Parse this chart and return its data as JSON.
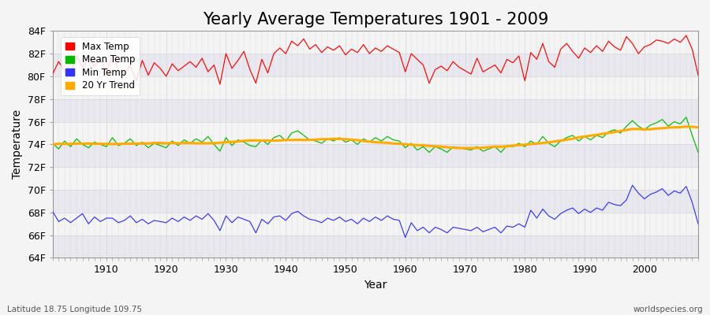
{
  "title": "Yearly Average Temperatures 1901 - 2009",
  "xlabel": "Year",
  "ylabel": "Temperature",
  "subtitle_left": "Latitude 18.75 Longitude 109.75",
  "subtitle_right": "worldspecies.org",
  "years": [
    1901,
    1902,
    1903,
    1904,
    1905,
    1906,
    1907,
    1908,
    1909,
    1910,
    1911,
    1912,
    1913,
    1914,
    1915,
    1916,
    1917,
    1918,
    1919,
    1920,
    1921,
    1922,
    1923,
    1924,
    1925,
    1926,
    1927,
    1928,
    1929,
    1930,
    1931,
    1932,
    1933,
    1934,
    1935,
    1936,
    1937,
    1938,
    1939,
    1940,
    1941,
    1942,
    1943,
    1944,
    1945,
    1946,
    1947,
    1948,
    1949,
    1950,
    1951,
    1952,
    1953,
    1954,
    1955,
    1956,
    1957,
    1958,
    1959,
    1960,
    1961,
    1962,
    1963,
    1964,
    1965,
    1966,
    1967,
    1968,
    1969,
    1970,
    1971,
    1972,
    1973,
    1974,
    1975,
    1976,
    1977,
    1978,
    1979,
    1980,
    1981,
    1982,
    1983,
    1984,
    1985,
    1986,
    1987,
    1988,
    1989,
    1990,
    1991,
    1992,
    1993,
    1994,
    1995,
    1996,
    1997,
    1998,
    1999,
    2000,
    2001,
    2002,
    2003,
    2004,
    2005,
    2006,
    2007,
    2008,
    2009
  ],
  "max_temp": [
    80.2,
    81.3,
    80.5,
    80.1,
    81.8,
    80.8,
    81.6,
    80.9,
    81.5,
    80.3,
    81.9,
    80.6,
    80.2,
    81.0,
    79.6,
    81.4,
    80.1,
    81.2,
    80.7,
    80.0,
    81.1,
    80.5,
    80.9,
    81.3,
    80.8,
    81.6,
    80.4,
    81.0,
    79.3,
    82.0,
    80.7,
    81.4,
    82.2,
    80.6,
    79.4,
    81.5,
    80.3,
    82.0,
    82.5,
    82.0,
    83.1,
    82.7,
    83.3,
    82.4,
    82.8,
    82.1,
    82.6,
    82.3,
    82.7,
    81.9,
    82.4,
    82.1,
    82.8,
    82.0,
    82.5,
    82.2,
    82.7,
    82.4,
    82.1,
    80.4,
    82.0,
    81.5,
    81.0,
    79.4,
    80.6,
    80.9,
    80.5,
    81.3,
    80.8,
    80.5,
    80.2,
    81.6,
    80.4,
    80.7,
    81.0,
    80.3,
    81.5,
    81.2,
    81.8,
    79.6,
    82.1,
    81.5,
    82.9,
    81.3,
    80.8,
    82.4,
    82.9,
    82.2,
    81.6,
    82.5,
    82.1,
    82.7,
    82.2,
    83.1,
    82.6,
    82.3,
    83.5,
    82.9,
    82.0,
    82.6,
    82.8,
    83.2,
    83.1,
    82.9,
    83.3,
    83.0,
    83.6,
    82.4,
    80.1
  ],
  "mean_temp": [
    74.1,
    73.6,
    74.3,
    73.8,
    74.5,
    74.0,
    73.7,
    74.2,
    74.0,
    73.8,
    74.6,
    73.9,
    74.1,
    74.5,
    73.9,
    74.2,
    73.7,
    74.1,
    73.9,
    73.7,
    74.3,
    73.9,
    74.4,
    74.1,
    74.5,
    74.2,
    74.7,
    74.0,
    73.4,
    74.6,
    73.9,
    74.4,
    74.2,
    73.9,
    73.8,
    74.4,
    74.0,
    74.6,
    74.8,
    74.3,
    75.0,
    75.2,
    74.8,
    74.4,
    74.3,
    74.1,
    74.5,
    74.3,
    74.6,
    74.2,
    74.4,
    74.0,
    74.5,
    74.2,
    74.6,
    74.3,
    74.7,
    74.4,
    74.3,
    73.7,
    74.1,
    73.5,
    73.8,
    73.3,
    73.8,
    73.6,
    73.3,
    73.8,
    73.7,
    73.6,
    73.5,
    73.8,
    73.4,
    73.6,
    73.8,
    73.3,
    73.9,
    73.8,
    74.1,
    73.8,
    74.3,
    74.0,
    74.7,
    74.1,
    73.8,
    74.3,
    74.6,
    74.8,
    74.3,
    74.7,
    74.4,
    74.8,
    74.6,
    75.1,
    75.3,
    75.0,
    75.6,
    76.1,
    75.6,
    75.3,
    75.7,
    75.9,
    76.2,
    75.6,
    76.0,
    75.8,
    76.4,
    74.8,
    73.3
  ],
  "min_temp": [
    68.1,
    67.2,
    67.5,
    67.1,
    67.5,
    67.9,
    67.0,
    67.6,
    67.2,
    67.5,
    67.5,
    67.1,
    67.3,
    67.7,
    67.1,
    67.4,
    67.0,
    67.3,
    67.2,
    67.1,
    67.5,
    67.2,
    67.6,
    67.3,
    67.7,
    67.4,
    67.9,
    67.3,
    66.4,
    67.7,
    67.1,
    67.6,
    67.4,
    67.2,
    66.2,
    67.4,
    67.0,
    67.6,
    67.7,
    67.3,
    67.9,
    68.1,
    67.7,
    67.4,
    67.3,
    67.1,
    67.5,
    67.3,
    67.6,
    67.2,
    67.4,
    67.0,
    67.5,
    67.2,
    67.6,
    67.3,
    67.7,
    67.4,
    67.3,
    65.8,
    67.1,
    66.4,
    66.7,
    66.2,
    66.7,
    66.5,
    66.2,
    66.7,
    66.6,
    66.5,
    66.4,
    66.7,
    66.3,
    66.5,
    66.7,
    66.2,
    66.8,
    66.7,
    67.0,
    66.7,
    68.2,
    67.5,
    68.3,
    67.7,
    67.4,
    67.9,
    68.2,
    68.4,
    67.9,
    68.3,
    68.0,
    68.4,
    68.2,
    68.9,
    68.7,
    68.6,
    69.1,
    70.4,
    69.7,
    69.2,
    69.6,
    69.8,
    70.1,
    69.5,
    69.9,
    69.7,
    70.3,
    68.9,
    67.0
  ],
  "ylim": [
    64,
    84
  ],
  "yticks": [
    64,
    66,
    68,
    70,
    72,
    74,
    76,
    78,
    80,
    82,
    84
  ],
  "ytick_labels": [
    "64F",
    "66F",
    "68F",
    "70F",
    "72F",
    "74F",
    "76F",
    "78F",
    "80F",
    "82F",
    "84F"
  ],
  "xlim": [
    1901,
    2009
  ],
  "xticks": [
    1910,
    1920,
    1930,
    1940,
    1950,
    1960,
    1970,
    1980,
    1990,
    2000
  ],
  "max_color": "#ff0000",
  "mean_color": "#00bb00",
  "min_color": "#3333ff",
  "trend_color": "#ffaa00",
  "bg_color": "#f4f4f4",
  "plot_bg_color": "#f4f4f4",
  "band_color_1": "#e8e8ee",
  "band_color_2": "#f4f4f4",
  "grid_color": "#d8d8e0",
  "trend_window": 20,
  "title_fontsize": 15,
  "axis_label_fontsize": 10,
  "tick_fontsize": 9,
  "legend_fontsize": 8.5
}
